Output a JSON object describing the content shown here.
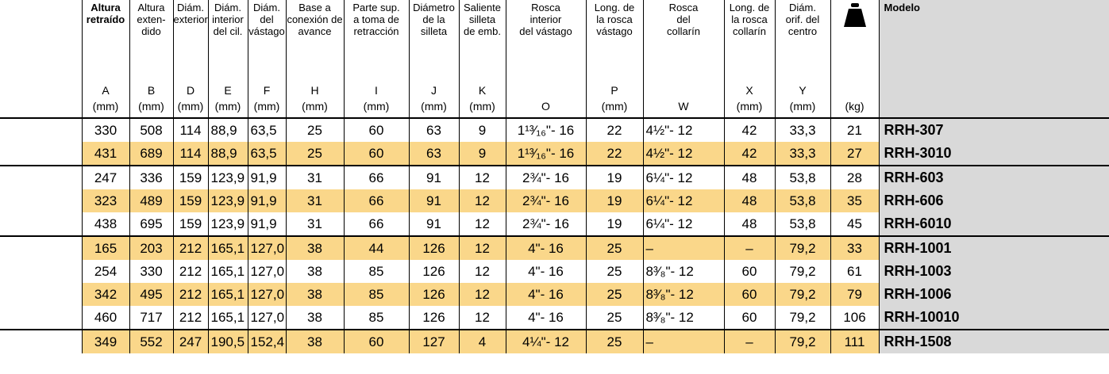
{
  "table": {
    "columns": [
      {
        "name": "Altura\nretraído",
        "letter": "A",
        "unit": "(mm)"
      },
      {
        "name": "Altura\nexten-\ndido",
        "letter": "B",
        "unit": "(mm)"
      },
      {
        "name": "Diám.\nexterior",
        "letter": "D",
        "unit": "(mm)"
      },
      {
        "name": "Diám.\ninterior\ndel cil.",
        "letter": "E",
        "unit": "(mm)"
      },
      {
        "name": "Diám.\ndel\nvástago",
        "letter": "F",
        "unit": "(mm)"
      },
      {
        "name": "Base a\nconexión de\navance",
        "letter": "H",
        "unit": "(mm)"
      },
      {
        "name": "Parte sup.\na toma de\nretracción",
        "letter": "I",
        "unit": "(mm)"
      },
      {
        "name": "Diámetro\nde la\nsilleta",
        "letter": "J",
        "unit": "(mm)"
      },
      {
        "name": "Saliente\nsilleta\nde emb.",
        "letter": "K",
        "unit": "(mm)"
      },
      {
        "name": "Rosca\ninterior\ndel vástago",
        "letter": "O"
      },
      {
        "name": "Long. de\nla rosca\nvástago",
        "letter": "P",
        "unit": "(mm)"
      },
      {
        "name": "Rosca\ndel\ncollarín",
        "letter": "W"
      },
      {
        "name": "Long. de\nla rosca\ncollarín",
        "letter": "X",
        "unit": "(mm)"
      },
      {
        "name": "Diám.\norif. del\ncentro",
        "letter": "Y",
        "unit": "(mm)"
      },
      {
        "unit": "(kg)"
      },
      {
        "name": "Modelo"
      }
    ],
    "groups": [
      [
        [
          "330",
          "508",
          "114",
          "88,9",
          "63,5",
          "25",
          "60",
          "63",
          "9",
          "1¹³⁄₁₆\"- 16",
          "22",
          "4½\"- 12",
          "42",
          "33,3",
          "21",
          "RRH-307"
        ],
        [
          "431",
          "689",
          "114",
          "88,9",
          "63,5",
          "25",
          "60",
          "63",
          "9",
          "1¹³⁄₁₆\"- 16",
          "22",
          "4½\"- 12",
          "42",
          "33,3",
          "27",
          "RRH-3010"
        ]
      ],
      [
        [
          "247",
          "336",
          "159",
          "123,9",
          "91,9",
          "31",
          "66",
          "91",
          "12",
          "2¾\"- 16",
          "19",
          "6¼\"- 12",
          "48",
          "53,8",
          "28",
          "RRH-603"
        ],
        [
          "323",
          "489",
          "159",
          "123,9",
          "91,9",
          "31",
          "66",
          "91",
          "12",
          "2¾\"- 16",
          "19",
          "6¼\"- 12",
          "48",
          "53,8",
          "35",
          "RRH-606"
        ],
        [
          "438",
          "695",
          "159",
          "123,9",
          "91,9",
          "31",
          "66",
          "91",
          "12",
          "2¾\"- 16",
          "19",
          "6¼\"- 12",
          "48",
          "53,8",
          "45",
          "RRH-6010"
        ]
      ],
      [
        [
          "165",
          "203",
          "212",
          "165,1",
          "127,0",
          "38",
          "44",
          "126",
          "12",
          "4\"- 16",
          "25",
          "–",
          "–",
          "79,2",
          "33",
          "RRH-1001"
        ],
        [
          "254",
          "330",
          "212",
          "165,1",
          "127,0",
          "38",
          "85",
          "126",
          "12",
          "4\"- 16",
          "25",
          "8³⁄₈\"- 12",
          "60",
          "79,2",
          "61",
          "RRH-1003"
        ],
        [
          "342",
          "495",
          "212",
          "165,1",
          "127,0",
          "38",
          "85",
          "126",
          "12",
          "4\"- 16",
          "25",
          "8³⁄₈\"- 12",
          "60",
          "79,2",
          "79",
          "RRH-1006"
        ],
        [
          "460",
          "717",
          "212",
          "165,1",
          "127,0",
          "38",
          "85",
          "126",
          "12",
          "4\"- 16",
          "25",
          "8³⁄₈\"- 12",
          "60",
          "79,2",
          "106",
          "RRH-10010"
        ]
      ],
      [
        [
          "349",
          "552",
          "247",
          "190,5",
          "152,4",
          "38",
          "60",
          "127",
          "4",
          "4¼\"- 12",
          "25",
          "–",
          "–",
          "79,2",
          "111",
          "RRH-1508"
        ]
      ]
    ]
  }
}
